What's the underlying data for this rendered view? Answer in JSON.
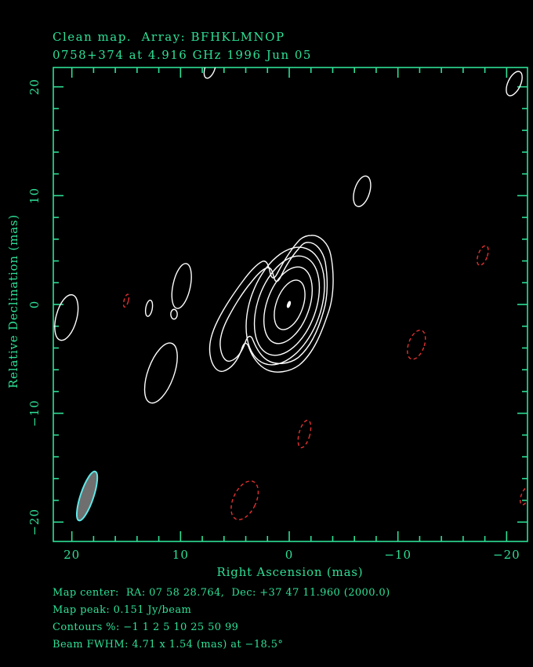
{
  "title": {
    "line1": "Clean map.  Array: BFHKLMNOP",
    "line2": "0758+374 at 4.916 GHz 1996 Jun 05"
  },
  "footer": {
    "map_center": "Map center:  RA: 07 58 28.764,  Dec: +37 47 11.960 (2000.0)",
    "map_peak": "Map peak: 0.151 Jy/beam",
    "contours": "Contours %: −1 1 2 5 10 25 50 99",
    "beam_fwhm": "Beam FWHM: 4.71 x 1.54 (mas) at −18.5°"
  },
  "colors": {
    "background": "#000000",
    "axis_green": "#2EE096",
    "contour_positive_white": "#FFFFFF",
    "contour_negative_red": "#E43030",
    "beam_fill": "#6F6F6F",
    "beam_outline": "#5FE8E8"
  },
  "chart_data": {
    "type": "contour",
    "title": "Clean map.  Array: BFHKLMNOP",
    "source_name": "0758+374",
    "frequency": "4.916 GHz",
    "observation_date": "1996 Jun 05",
    "xlabel": "Right Ascension  (mas)",
    "ylabel": "Relative Declination  (mas)",
    "xlim": [
      21.7,
      -21.8
    ],
    "ylim": [
      -21.8,
      21.8
    ],
    "grid": false,
    "x_ticks": [
      {
        "value": 20,
        "label": "20"
      },
      {
        "value": 10,
        "label": "10"
      },
      {
        "value": 0,
        "label": "0"
      },
      {
        "value": -10,
        "label": "−10"
      },
      {
        "value": -20,
        "label": "−20"
      }
    ],
    "y_ticks": [
      {
        "value": 20,
        "label": "20"
      },
      {
        "value": 10,
        "label": "10"
      },
      {
        "value": 0,
        "label": "0"
      },
      {
        "value": -10,
        "label": "−10"
      },
      {
        "value": -20,
        "label": "−20"
      }
    ],
    "minor_tick_step_mas": 2,
    "contour_levels_percent": [
      -1,
      1,
      2,
      5,
      10,
      25,
      50,
      99
    ],
    "map_peak_jy_per_beam": 0.151,
    "map_center": {
      "ra": "07 58 28.764",
      "dec": "+37 47 11.960",
      "equinox": "2000.0"
    },
    "beam": {
      "fwhm_major_mas": 4.71,
      "fwhm_minor_mas": 1.54,
      "position_angle_deg": -18.5,
      "x_mas": 18.6,
      "y_mas": -17.6,
      "rx_mas": 0.6,
      "ry_mas": 2.37,
      "tilt_deg": 18.5
    },
    "main_component": {
      "x_mas": 0.0,
      "y_mas": 0.0,
      "peak_percent": 99,
      "jet_direction": "southwest",
      "tilt_deg": 20
    },
    "features": [
      {
        "polarity": "positive",
        "x_mas": 7.3,
        "y_mas": 21.7,
        "rx_mas": 0.45,
        "ry_mas": 0.95,
        "tilt_deg": 20
      },
      {
        "polarity": "positive",
        "x_mas": -20.7,
        "y_mas": 20.3,
        "rx_mas": 0.58,
        "ry_mas": 1.2,
        "tilt_deg": 25
      },
      {
        "polarity": "positive",
        "x_mas": -6.7,
        "y_mas": 10.4,
        "rx_mas": 0.7,
        "ry_mas": 1.45,
        "tilt_deg": 17
      },
      {
        "polarity": "positive",
        "x_mas": 20.5,
        "y_mas": -1.2,
        "rx_mas": 0.95,
        "ry_mas": 2.15,
        "tilt_deg": 15
      },
      {
        "polarity": "positive",
        "x_mas": 9.9,
        "y_mas": 1.7,
        "rx_mas": 0.8,
        "ry_mas": 2.1,
        "tilt_deg": 12
      },
      {
        "polarity": "positive",
        "x_mas": 12.9,
        "y_mas": -0.35,
        "rx_mas": 0.3,
        "ry_mas": 0.75,
        "tilt_deg": 10
      },
      {
        "polarity": "positive",
        "x_mas": 10.6,
        "y_mas": -0.9,
        "rx_mas": 0.3,
        "ry_mas": 0.45,
        "tilt_deg": 0
      },
      {
        "polarity": "positive",
        "x_mas": 11.8,
        "y_mas": -6.3,
        "rx_mas": 1.2,
        "ry_mas": 2.9,
        "tilt_deg": 20
      },
      {
        "polarity": "negative",
        "x_mas": 15.0,
        "y_mas": 0.35,
        "rx_mas": 0.2,
        "ry_mas": 0.6,
        "tilt_deg": 15
      },
      {
        "polarity": "negative",
        "x_mas": -17.8,
        "y_mas": 4.5,
        "rx_mas": 0.42,
        "ry_mas": 0.95,
        "tilt_deg": 20
      },
      {
        "polarity": "negative",
        "x_mas": -11.7,
        "y_mas": -3.7,
        "rx_mas": 0.72,
        "ry_mas": 1.4,
        "tilt_deg": 20
      },
      {
        "polarity": "negative",
        "x_mas": -1.4,
        "y_mas": -11.9,
        "rx_mas": 0.5,
        "ry_mas": 1.3,
        "tilt_deg": 15
      },
      {
        "polarity": "negative",
        "x_mas": 4.1,
        "y_mas": -18.0,
        "rx_mas": 1.05,
        "ry_mas": 1.9,
        "tilt_deg": 25
      },
      {
        "polarity": "negative",
        "x_mas": -21.7,
        "y_mas": -17.6,
        "rx_mas": 0.36,
        "ry_mas": 0.85,
        "tilt_deg": 20
      }
    ]
  }
}
